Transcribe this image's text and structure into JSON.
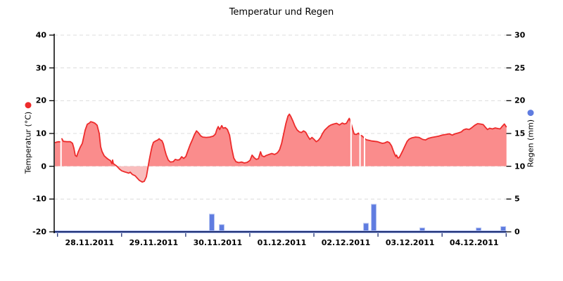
{
  "title": "Temperatur und Regen",
  "chart_data": {
    "type": "combo",
    "x_axis": {
      "tick_labels": [
        "28.11.2011",
        "29.11.2011",
        "30.11.2011",
        "01.12.2011",
        "02.12.2011",
        "03.12.2011",
        "04.12.2011"
      ],
      "core_color": "#223273",
      "halo_color": "#A9B9EE"
    },
    "left_axis": {
      "label": "Temperatur (°C)",
      "min": -20,
      "max": 40,
      "ticks": [
        40,
        30,
        20,
        10,
        0,
        -10,
        -20
      ],
      "marker_color": "#ED2B2B",
      "line_color": "#000000"
    },
    "right_axis": {
      "label": "Regen (mm)",
      "min": 0,
      "max": 30,
      "ticks": [
        30,
        25,
        20,
        15,
        10,
        5,
        0
      ],
      "marker_color": "#5F7CE0"
    },
    "grid": {
      "color": "#DCDCDC",
      "dashed": true
    },
    "series": [
      {
        "name": "Temperatur",
        "type": "area",
        "axis": "left",
        "line_color": "#ED2B2B",
        "fill_above_zero": "#FA8C8C",
        "fill_below_zero": "#F9BDBD",
        "points": [
          [
            -0.041,
            7.2
          ],
          [
            -0.008,
            7.4
          ],
          [
            0.025,
            7.5
          ],
          [
            0.05,
            7.4
          ],
          [
            0.069,
            8.4
          ],
          [
            0.091,
            7.6
          ],
          [
            0.146,
            7.5
          ],
          [
            0.201,
            7.5
          ],
          [
            0.234,
            7.0
          ],
          [
            0.256,
            5.5
          ],
          [
            0.278,
            3.3
          ],
          [
            0.3,
            3.0
          ],
          [
            0.322,
            4.3
          ],
          [
            0.355,
            5.8
          ],
          [
            0.388,
            7.0
          ],
          [
            0.41,
            9.0
          ],
          [
            0.432,
            11.0
          ],
          [
            0.464,
            12.8
          ],
          [
            0.497,
            13.2
          ],
          [
            0.519,
            13.6
          ],
          [
            0.552,
            13.4
          ],
          [
            0.585,
            13.1
          ],
          [
            0.618,
            12.5
          ],
          [
            0.651,
            10.0
          ],
          [
            0.673,
            6.0
          ],
          [
            0.695,
            4.5
          ],
          [
            0.728,
            3.2
          ],
          [
            0.761,
            2.6
          ],
          [
            0.794,
            2.1
          ],
          [
            0.827,
            1.7
          ],
          [
            0.849,
            0.8
          ],
          [
            0.86,
            1.9
          ],
          [
            0.871,
            0.8
          ],
          [
            0.893,
            0.5
          ],
          [
            0.915,
            0.2
          ],
          [
            0.937,
            -0.2
          ],
          [
            0.97,
            -0.9
          ],
          [
            1.002,
            -1.4
          ],
          [
            1.046,
            -1.7
          ],
          [
            1.079,
            -1.9
          ],
          [
            1.112,
            -2.1
          ],
          [
            1.134,
            -1.8
          ],
          [
            1.167,
            -2.5
          ],
          [
            1.211,
            -2.9
          ],
          [
            1.244,
            -3.6
          ],
          [
            1.277,
            -4.3
          ],
          [
            1.321,
            -4.8
          ],
          [
            1.354,
            -4.6
          ],
          [
            1.387,
            -3.2
          ],
          [
            1.431,
            1.8
          ],
          [
            1.453,
            4.0
          ],
          [
            1.475,
            6.0
          ],
          [
            1.497,
            7.3
          ],
          [
            1.53,
            7.7
          ],
          [
            1.563,
            8.0
          ],
          [
            1.585,
            8.4
          ],
          [
            1.607,
            8.0
          ],
          [
            1.629,
            7.8
          ],
          [
            1.651,
            6.8
          ],
          [
            1.673,
            5.0
          ],
          [
            1.695,
            3.5
          ],
          [
            1.728,
            1.9
          ],
          [
            1.761,
            1.3
          ],
          [
            1.805,
            1.4
          ],
          [
            1.838,
            2.1
          ],
          [
            1.871,
            1.9
          ],
          [
            1.904,
            2.0
          ],
          [
            1.937,
            2.9
          ],
          [
            1.97,
            2.4
          ],
          [
            2.003,
            3.0
          ],
          [
            2.036,
            4.8
          ],
          [
            2.069,
            6.5
          ],
          [
            2.102,
            8.0
          ],
          [
            2.135,
            9.6
          ],
          [
            2.168,
            10.8
          ],
          [
            2.2,
            10.2
          ],
          [
            2.233,
            9.3
          ],
          [
            2.266,
            8.9
          ],
          [
            2.321,
            8.8
          ],
          [
            2.376,
            8.9
          ],
          [
            2.431,
            9.2
          ],
          [
            2.464,
            9.8
          ],
          [
            2.486,
            11.2
          ],
          [
            2.508,
            12.1
          ],
          [
            2.53,
            11.2
          ],
          [
            2.563,
            12.4
          ],
          [
            2.585,
            11.6
          ],
          [
            2.618,
            11.8
          ],
          [
            2.651,
            11.2
          ],
          [
            2.684,
            9.5
          ],
          [
            2.717,
            5.5
          ],
          [
            2.75,
            2.5
          ],
          [
            2.783,
            1.4
          ],
          [
            2.827,
            1.1
          ],
          [
            2.871,
            1.3
          ],
          [
            2.915,
            1.0
          ],
          [
            2.959,
            1.2
          ],
          [
            3.003,
            1.8
          ],
          [
            3.036,
            3.4
          ],
          [
            3.069,
            2.6
          ],
          [
            3.102,
            2.1
          ],
          [
            3.135,
            2.3
          ],
          [
            3.168,
            4.4
          ],
          [
            3.19,
            3.2
          ],
          [
            3.222,
            2.9
          ],
          [
            3.255,
            3.3
          ],
          [
            3.299,
            3.6
          ],
          [
            3.343,
            3.9
          ],
          [
            3.387,
            3.6
          ],
          [
            3.431,
            4.1
          ],
          [
            3.464,
            5.0
          ],
          [
            3.497,
            7.0
          ],
          [
            3.53,
            10.0
          ],
          [
            3.563,
            13.0
          ],
          [
            3.596,
            15.3
          ],
          [
            3.618,
            15.9
          ],
          [
            3.64,
            15.2
          ],
          [
            3.673,
            13.8
          ],
          [
            3.706,
            12.2
          ],
          [
            3.739,
            11.1
          ],
          [
            3.772,
            10.5
          ],
          [
            3.805,
            10.3
          ],
          [
            3.838,
            10.8
          ],
          [
            3.871,
            10.4
          ],
          [
            3.904,
            9.2
          ],
          [
            3.937,
            8.2
          ],
          [
            3.97,
            8.8
          ],
          [
            4.003,
            8.2
          ],
          [
            4.036,
            7.5
          ],
          [
            4.069,
            7.9
          ],
          [
            4.102,
            8.7
          ],
          [
            4.135,
            10.0
          ],
          [
            4.168,
            11.0
          ],
          [
            4.2,
            11.6
          ],
          [
            4.233,
            12.2
          ],
          [
            4.266,
            12.6
          ],
          [
            4.31,
            12.9
          ],
          [
            4.354,
            13.1
          ],
          [
            4.398,
            12.6
          ],
          [
            4.442,
            13.2
          ],
          [
            4.475,
            12.9
          ],
          [
            4.508,
            13.1
          ],
          [
            4.53,
            13.9
          ],
          [
            4.552,
            14.6
          ],
          [
            4.574,
            13.5
          ],
          [
            4.607,
            11.2
          ],
          [
            4.629,
            9.8
          ],
          [
            4.662,
            9.7
          ],
          [
            4.695,
            10.1
          ],
          [
            4.717,
            9.5
          ],
          [
            4.75,
            9.3
          ],
          [
            4.783,
            8.7
          ],
          [
            4.816,
            8.1
          ],
          [
            4.86,
            7.9
          ],
          [
            4.904,
            7.7
          ],
          [
            4.948,
            7.6
          ],
          [
            4.992,
            7.5
          ],
          [
            5.036,
            7.2
          ],
          [
            5.069,
            7.0
          ],
          [
            5.102,
            7.1
          ],
          [
            5.146,
            7.5
          ],
          [
            5.179,
            7.2
          ],
          [
            5.212,
            6.2
          ],
          [
            5.234,
            5.0
          ],
          [
            5.256,
            3.9
          ],
          [
            5.278,
            3.0
          ],
          [
            5.289,
            3.4
          ],
          [
            5.311,
            2.5
          ],
          [
            5.333,
            2.7
          ],
          [
            5.355,
            3.5
          ],
          [
            5.388,
            4.8
          ],
          [
            5.421,
            6.2
          ],
          [
            5.454,
            7.6
          ],
          [
            5.487,
            8.3
          ],
          [
            5.531,
            8.7
          ],
          [
            5.586,
            8.9
          ],
          [
            5.641,
            8.8
          ],
          [
            5.696,
            8.2
          ],
          [
            5.74,
            8.0
          ],
          [
            5.784,
            8.5
          ],
          [
            5.839,
            8.8
          ],
          [
            5.894,
            9.0
          ],
          [
            5.949,
            9.2
          ],
          [
            6.004,
            9.5
          ],
          [
            6.059,
            9.7
          ],
          [
            6.114,
            9.9
          ],
          [
            6.158,
            9.5
          ],
          [
            6.202,
            9.9
          ],
          [
            6.257,
            10.2
          ],
          [
            6.301,
            10.5
          ],
          [
            6.334,
            11.1
          ],
          [
            6.378,
            11.4
          ],
          [
            6.422,
            11.2
          ],
          [
            6.466,
            11.8
          ],
          [
            6.51,
            12.5
          ],
          [
            6.554,
            13.0
          ],
          [
            6.598,
            12.9
          ],
          [
            6.642,
            12.7
          ],
          [
            6.675,
            11.9
          ],
          [
            6.708,
            11.2
          ],
          [
            6.741,
            11.6
          ],
          [
            6.785,
            11.4
          ],
          [
            6.829,
            11.7
          ],
          [
            6.873,
            11.5
          ],
          [
            6.906,
            11.4
          ],
          [
            6.939,
            12.2
          ],
          [
            6.972,
            12.9
          ],
          [
            7.005,
            11.9
          ]
        ],
        "data_gaps": [
          [
            0.055,
            8.2
          ],
          [
            4.58,
            14.2
          ],
          [
            4.72,
            10.3
          ],
          [
            4.79,
            9.5
          ]
        ]
      },
      {
        "name": "Regen",
        "type": "bar",
        "axis": "right",
        "fill_color": "#5F7CE0",
        "edge_color": "#B7C5F2",
        "bars": [
          [
            2.408,
            2.7
          ],
          [
            2.562,
            1.1
          ],
          [
            4.813,
            1.3
          ],
          [
            4.934,
            4.2
          ],
          [
            5.691,
            0.6
          ],
          [
            6.57,
            0.6
          ],
          [
            6.954,
            0.8
          ]
        ]
      }
    ]
  }
}
